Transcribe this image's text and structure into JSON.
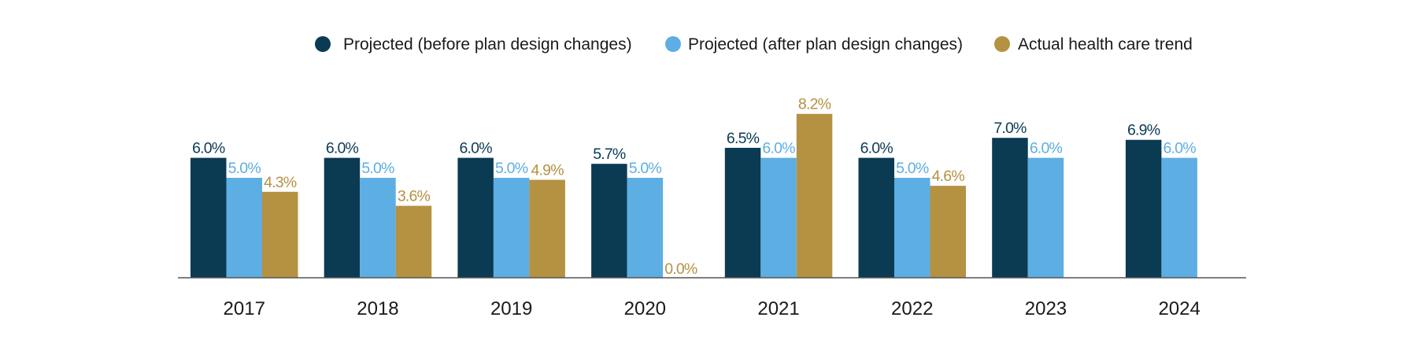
{
  "chart_data": {
    "type": "bar",
    "title": "",
    "xlabel": "",
    "ylabel": "",
    "ylim": [
      0,
      8.2
    ],
    "grid": false,
    "legend_position": "top",
    "categories": [
      "2017",
      "2018",
      "2019",
      "2020",
      "2021",
      "2022",
      "2023",
      "2024"
    ],
    "series": [
      {
        "name": "Projected (before plan design changes)",
        "color": "#0b3a53",
        "values": [
          6.0,
          6.0,
          6.0,
          5.7,
          6.5,
          6.0,
          7.0,
          6.9
        ],
        "labels": [
          "6.0%",
          "6.0%",
          "6.0%",
          "5.7%",
          "6.5%",
          "6.0%",
          "7.0%",
          "6.9%"
        ]
      },
      {
        "name": "Projected (after plan design changes)",
        "color": "#5daee3",
        "values": [
          5.0,
          5.0,
          5.0,
          5.0,
          6.0,
          5.0,
          6.0,
          6.0
        ],
        "labels": [
          "5.0%",
          "5.0%",
          "5.0%",
          "5.0%",
          "6.0%",
          "5.0%",
          "6.0%",
          "6.0%"
        ]
      },
      {
        "name": "Actual health care trend",
        "color": "#b59142",
        "values": [
          4.3,
          3.6,
          4.9,
          0.0,
          8.2,
          4.6,
          null,
          null
        ],
        "labels": [
          "4.3%",
          "3.6%",
          "4.9%",
          "0.0%",
          "8.2%",
          "4.6%",
          null,
          null
        ]
      }
    ]
  }
}
